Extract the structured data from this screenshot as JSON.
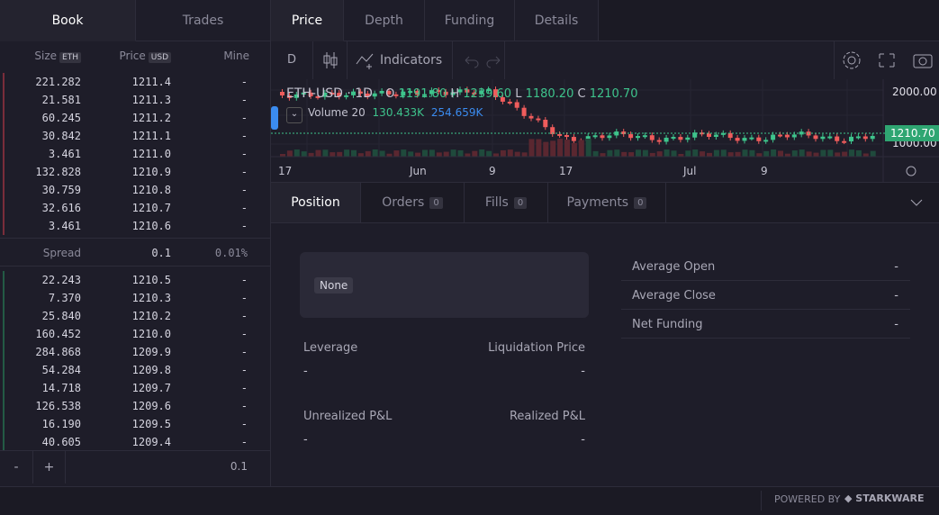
{
  "book_tabs": [
    "Book",
    "Trades"
  ],
  "chart_tabs": [
    "Price",
    "Depth",
    "Funding",
    "Details"
  ],
  "book_header": {
    "size": "Size",
    "size_unit": "ETH",
    "price": "Price",
    "price_unit": "USD",
    "mine": "Mine"
  },
  "asks": [
    [
      "221.282",
      "1211.4",
      "-"
    ],
    [
      "21.581",
      "1211.3",
      "-"
    ],
    [
      "60.245",
      "1211.2",
      "-"
    ],
    [
      "30.842",
      "1211.1",
      "-"
    ],
    [
      "3.461",
      "1211.0",
      "-"
    ],
    [
      "132.828",
      "1210.9",
      "-"
    ],
    [
      "30.759",
      "1210.8",
      "-"
    ],
    [
      "32.616",
      "1210.7",
      "-"
    ],
    [
      "3.461",
      "1210.6",
      "-"
    ]
  ],
  "spread": {
    "label": "Spread",
    "value": "0.1",
    "percent": "0.01%"
  },
  "bids": [
    [
      "22.243",
      "1210.5",
      "-"
    ],
    [
      "7.370",
      "1210.3",
      "-"
    ],
    [
      "25.840",
      "1210.2",
      "-"
    ],
    [
      "160.452",
      "1210.0",
      "-"
    ],
    [
      "284.868",
      "1209.9",
      "-"
    ],
    [
      "54.284",
      "1209.8",
      "-"
    ],
    [
      "14.718",
      "1209.7",
      "-"
    ],
    [
      "126.538",
      "1209.6",
      "-"
    ],
    [
      "16.190",
      "1209.5",
      "-"
    ],
    [
      "40.605",
      "1209.4",
      "-"
    ]
  ],
  "book_footer": {
    "minus": "-",
    "plus": "+",
    "grouping": "0.1"
  },
  "toolbar": {
    "interval": "D",
    "indicators": "Indicators"
  },
  "chart_legend": {
    "symbol": "ETH-USD · 1D",
    "open_label": "O",
    "open": "1191.80",
    "high_label": "H",
    "high": "1239.60",
    "low_label": "L",
    "low": "1180.20",
    "close_label": "C",
    "close": "1210.70",
    "volume": "Volume 20",
    "volume_a": "130.433K",
    "volume_b": "254.659K"
  },
  "price_axis": [
    "2000.00",
    "1000.00"
  ],
  "last_price": "1210.70",
  "time_axis": [
    "17",
    "Jun",
    "9",
    "17",
    "Jul",
    "9"
  ],
  "position_tabs": [
    {
      "label": "Position"
    },
    {
      "label": "Orders",
      "count": "0"
    },
    {
      "label": "Fills",
      "count": "0"
    },
    {
      "label": "Payments",
      "count": "0"
    }
  ],
  "position": {
    "side": "None",
    "fields": [
      {
        "label": "Leverage",
        "value": "-"
      },
      {
        "label": "Liquidation Price",
        "value": "-"
      },
      {
        "label": "Unrealized P&L",
        "value": "-"
      },
      {
        "label": "Realized P&L",
        "value": "-"
      }
    ],
    "stats": [
      {
        "label": "Average Open",
        "value": "-"
      },
      {
        "label": "Average Close",
        "value": "-"
      },
      {
        "label": "Net Funding",
        "value": "-"
      }
    ]
  },
  "footer": {
    "powered_by": "POWERED BY",
    "brand": "STARKWARE"
  }
}
